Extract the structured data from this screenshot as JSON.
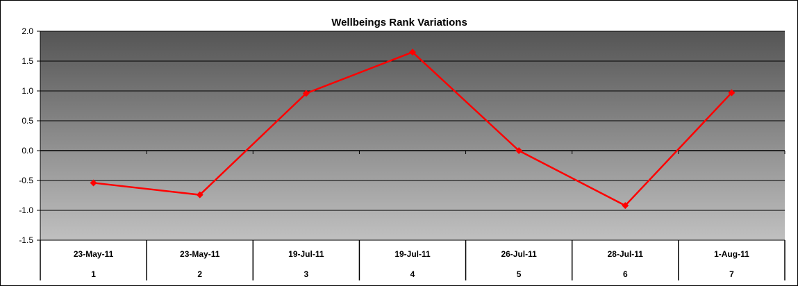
{
  "chart_data": {
    "type": "line",
    "title": "Wellbeings Rank Variations",
    "xlabel": "",
    "ylabel": "",
    "ylim": [
      -1.5,
      2.0
    ],
    "yticks": [
      "2.0",
      "1.5",
      "1.0",
      "0.5",
      "0.0",
      "-0.5",
      "-1.0",
      "-1.5"
    ],
    "categories": [
      {
        "date": "23-May-11",
        "index": "1"
      },
      {
        "date": "23-May-11",
        "index": "2"
      },
      {
        "date": "19-Jul-11",
        "index": "3"
      },
      {
        "date": "19-Jul-11",
        "index": "4"
      },
      {
        "date": "26-Jul-11",
        "index": "5"
      },
      {
        "date": "28-Jul-11",
        "index": "6"
      },
      {
        "date": "1-Aug-11",
        "index": "7"
      }
    ],
    "series": [
      {
        "values": [
          -0.54,
          -0.74,
          0.96,
          1.65,
          0.0,
          -0.92,
          0.97
        ],
        "color": "#ff0000"
      }
    ],
    "grid": true,
    "legend": "none",
    "background_gradient": [
      "#555555",
      "#c0c0c0"
    ]
  }
}
